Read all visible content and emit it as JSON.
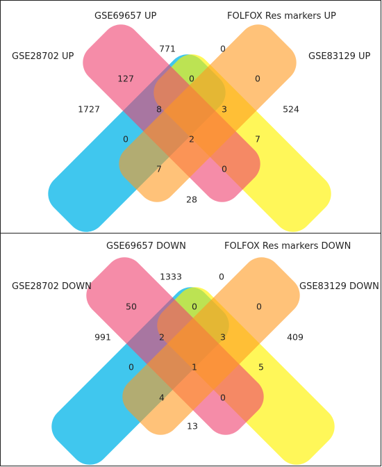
{
  "colors": {
    "set1": "#00b4e8",
    "set2": "#ee3f6e",
    "set3": "#ff9a1f",
    "set4": "#fff200"
  },
  "panels": [
    {
      "labels": {
        "set1": "GSE28702 UP",
        "set2": "GSE69657 UP",
        "set3": "FOLFOX Res markers UP",
        "set4": "GSE83129 UP"
      },
      "counts": {
        "only1": "1727",
        "only2": "771",
        "only3": "0",
        "only4": "524",
        "s12": "127",
        "s23": "0",
        "s34": "0",
        "s13": "0",
        "s24": "7",
        "s14": "28",
        "s123": "8",
        "s234": "3",
        "s124": "0",
        "s134": "7",
        "s1234": "2"
      }
    },
    {
      "labels": {
        "set1": "GSE28702 DOWN",
        "set2": "GSE69657 DOWN",
        "set3": "FOLFOX Res markers DOWN",
        "set4": "GSE83129 DOWN"
      },
      "counts": {
        "only1": "991",
        "only2": "1333",
        "only3": "0",
        "only4": "409",
        "s12": "50",
        "s23": "0",
        "s34": "0",
        "s13": "0",
        "s24": "5",
        "s14": "13",
        "s123": "2",
        "s234": "3",
        "s124": "0",
        "s134": "4",
        "s1234": "1"
      }
    }
  ]
}
